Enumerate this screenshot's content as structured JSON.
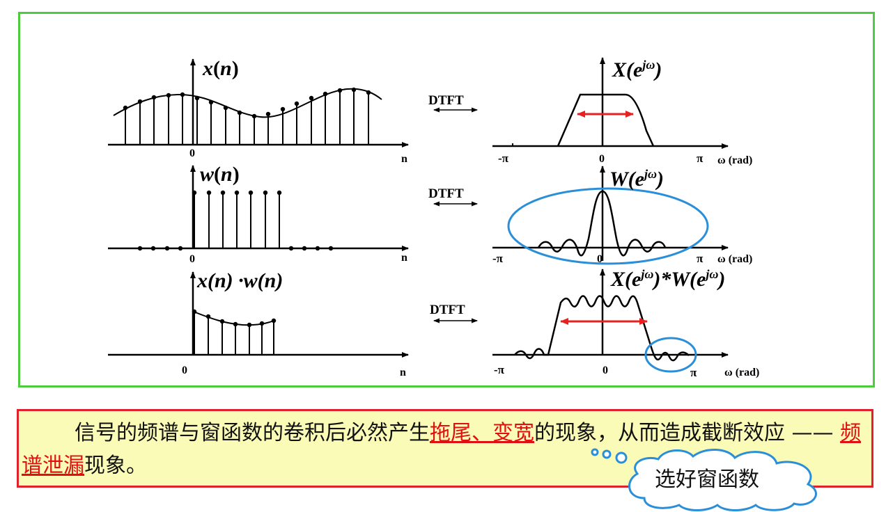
{
  "rows": [
    {
      "signal_label_var": "x",
      "signal_label_arg": "n",
      "transform": "DTFT",
      "spectrum_label": "X(e",
      "spectrum_sup": "jω",
      "spectrum_close": ")"
    },
    {
      "signal_label_var": "w",
      "signal_label_arg": "n",
      "transform": "DTFT",
      "spectrum_label": "W(e",
      "spectrum_sup": "jω",
      "spectrum_close": ")"
    },
    {
      "signal_label": "x(n) ·w(n)",
      "transform": "DTFT",
      "spectrum_label_a": "X(e",
      "spectrum_sup_a": "jω",
      "spectrum_mid": ")*W(e",
      "spectrum_sup_b": "jω",
      "spectrum_close": ")"
    }
  ],
  "axis": {
    "origin": "0",
    "n": "n",
    "neg_pi": "-π",
    "pi": "π",
    "omega_unit": "ω (rad)"
  },
  "caption": {
    "part1": "信号的频谱与窗函数的卷积后必然产生",
    "highlight1": "拖尾、变宽",
    "part2": "的现象，从而造成截断效应 ——  ",
    "highlight2": "频谱泄漏",
    "part3": "现象。"
  },
  "bubble": {
    "text": "选好窗函数"
  },
  "colors": {
    "frame": "#4ccc3c",
    "caption_border": "#e0202a",
    "caption_bg": "#fbfbb8",
    "highlight": "#e01010",
    "arrow": "#e82020",
    "circle": "#2a8fd8",
    "bubble_border": "#2a8fd8",
    "bubble_bg": "#ffffff"
  }
}
